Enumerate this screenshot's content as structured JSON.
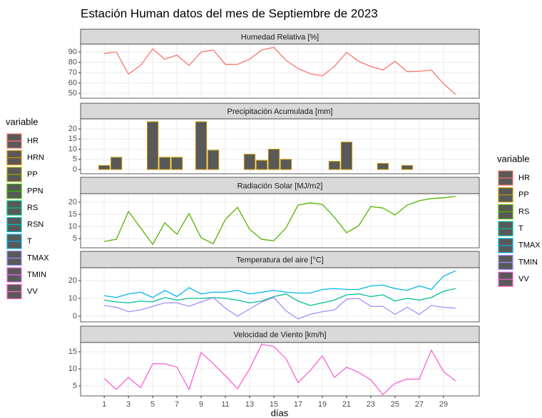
{
  "title": "Estación Human datos del mes de Septiembre de 2023",
  "x_axis": {
    "label": "días",
    "xlim": [
      -0.95,
      31.95
    ],
    "xticks": [
      1,
      3,
      5,
      7,
      9,
      11,
      13,
      15,
      17,
      19,
      21,
      23,
      25,
      27,
      29
    ]
  },
  "legends": [
    {
      "title": "variable",
      "position": "left",
      "items": [
        {
          "name": "HR",
          "color": "#F8766D"
        },
        {
          "name": "HRN",
          "color": "#D89000"
        },
        {
          "name": "PP",
          "color": "#A3A500"
        },
        {
          "name": "PPN",
          "color": "#39B600"
        },
        {
          "name": "RS",
          "color": "#00BF7D"
        },
        {
          "name": "RSN",
          "color": "#00BFC4"
        },
        {
          "name": "T",
          "color": "#00B0F6"
        },
        {
          "name": "TMAX",
          "color": "#9590FF"
        },
        {
          "name": "TMIN",
          "color": "#E76BF3"
        },
        {
          "name": "VV",
          "color": "#FF62BC"
        }
      ]
    },
    {
      "title": "variable",
      "position": "right",
      "items": [
        {
          "name": "HR",
          "color": "#F8766D"
        },
        {
          "name": "PP",
          "color": "#C49A00"
        },
        {
          "name": "RS",
          "color": "#53B400"
        },
        {
          "name": "T",
          "color": "#00C094"
        },
        {
          "name": "TMAX",
          "color": "#00B6EB"
        },
        {
          "name": "TMIN",
          "color": "#A58AFF"
        },
        {
          "name": "VV",
          "color": "#FB61D7"
        }
      ]
    }
  ],
  "chart_data": [
    {
      "type": "line",
      "title": "Humedad Relativa [%]",
      "ylim": [
        45.2,
        97.6
      ],
      "yticks": [
        50,
        60,
        70,
        80,
        90
      ],
      "x": [
        1,
        2,
        3,
        4,
        5,
        6,
        7,
        8,
        9,
        10,
        11,
        12,
        13,
        14,
        15,
        16,
        17,
        18,
        19,
        20,
        21,
        22,
        23,
        24,
        25,
        26,
        27,
        28,
        29,
        30
      ],
      "series": [
        {
          "name": "HR",
          "color": "#F8766D",
          "values": [
            88.6,
            90,
            68.6,
            77,
            93,
            83,
            87,
            77,
            90,
            92,
            78,
            78,
            83,
            92,
            94.5,
            82,
            74,
            69,
            67,
            76,
            89.6,
            81,
            76,
            72.6,
            81,
            71,
            71.3,
            72.5,
            59.3,
            49
          ]
        }
      ]
    },
    {
      "type": "bar",
      "title": "Precipitación Acumulada [mm]",
      "ylim": [
        -2.1,
        24.9
      ],
      "yticks": [
        0,
        5,
        10,
        15,
        20
      ],
      "x": [
        1,
        2,
        3,
        4,
        5,
        6,
        7,
        8,
        9,
        10,
        11,
        12,
        13,
        14,
        15,
        16,
        17,
        18,
        19,
        20,
        21,
        22,
        23,
        24,
        25,
        26,
        27,
        28,
        29,
        30
      ],
      "series": [
        {
          "name": "PP",
          "color": "#C49A00",
          "values": [
            2,
            6,
            0,
            0,
            23.5,
            6,
            6,
            0,
            23.5,
            9.5,
            0,
            0,
            7.5,
            4.5,
            10,
            5,
            0,
            0,
            0,
            4,
            13.5,
            0,
            0,
            3,
            0,
            2,
            0,
            0,
            0,
            0
          ]
        }
      ]
    },
    {
      "type": "line",
      "title": "Radiación Solar [MJ/m2]",
      "ylim": [
        1.2,
        23.5
      ],
      "yticks": [
        5,
        10,
        15,
        20
      ],
      "x": [
        1,
        2,
        3,
        4,
        5,
        6,
        7,
        8,
        9,
        10,
        11,
        12,
        13,
        14,
        15,
        16,
        17,
        18,
        19,
        20,
        21,
        22,
        23,
        24,
        25,
        26,
        27,
        28,
        29,
        30
      ],
      "series": [
        {
          "name": "RS",
          "color": "#53B400",
          "values": [
            3.8,
            4.7,
            16.2,
            9.4,
            2.6,
            11.5,
            6.8,
            15.3,
            5.3,
            2.9,
            12.9,
            17.9,
            8.8,
            4.7,
            4.1,
            9.4,
            18.8,
            19.7,
            19.1,
            13.8,
            7.4,
            10.3,
            18.2,
            17.6,
            14.7,
            18.8,
            20.6,
            21.5,
            21.8,
            22.4
          ]
        }
      ]
    },
    {
      "type": "line",
      "title": "Temperatura del aire [°C]",
      "ylim": [
        -3.2,
        27.2
      ],
      "yticks": [
        0,
        10,
        20
      ],
      "x": [
        1,
        2,
        3,
        4,
        5,
        6,
        7,
        8,
        9,
        10,
        11,
        12,
        13,
        14,
        15,
        16,
        17,
        18,
        19,
        20,
        21,
        22,
        23,
        24,
        25,
        26,
        27,
        28,
        29,
        30
      ],
      "series": [
        {
          "name": "T",
          "color": "#00C094",
          "values": [
            9,
            8,
            7.5,
            8.5,
            8,
            10.5,
            9,
            10,
            10,
            10.5,
            10,
            9,
            7.5,
            8.5,
            11,
            12.5,
            8.5,
            6,
            7.5,
            9,
            12,
            12.5,
            11,
            12,
            8.5,
            10,
            9,
            10.5,
            14,
            15.5
          ]
        },
        {
          "name": "TMAX",
          "color": "#00B6EB",
          "values": [
            11.5,
            10.5,
            12.5,
            13.5,
            10.5,
            14.5,
            11,
            16,
            12.5,
            13.5,
            13.5,
            14.5,
            12.5,
            13.5,
            14.5,
            13.5,
            13,
            13,
            15,
            15.5,
            15,
            15,
            17,
            17.5,
            15.5,
            14.5,
            17,
            15,
            22.5,
            25.5
          ]
        },
        {
          "name": "TMIN",
          "color": "#A58AFF",
          "values": [
            6,
            5,
            2.5,
            3.5,
            5.5,
            7.5,
            7.5,
            5.5,
            8,
            10.5,
            4.5,
            0,
            4,
            8,
            10.5,
            3,
            -1.5,
            1,
            2.5,
            3.5,
            9.5,
            10,
            5.5,
            5.5,
            1,
            5,
            1,
            6,
            5,
            4.5
          ]
        }
      ]
    },
    {
      "type": "line",
      "title": "Velocidad de Viento [km/h]",
      "ylim": [
        2.1,
        17.7
      ],
      "yticks": [
        5,
        10,
        15
      ],
      "x": [
        1,
        2,
        3,
        4,
        5,
        6,
        7,
        8,
        9,
        10,
        11,
        12,
        13,
        14,
        15,
        16,
        17,
        18,
        19,
        20,
        21,
        22,
        23,
        24,
        25,
        26,
        27,
        28,
        29,
        30
      ],
      "series": [
        {
          "name": "VV",
          "color": "#FB61D7",
          "values": [
            7.2,
            4,
            7.5,
            4.5,
            11.5,
            11.5,
            10.5,
            4,
            14.8,
            11.5,
            8,
            4.2,
            10,
            17.2,
            16.5,
            13,
            6,
            9.5,
            13.8,
            7.5,
            10.5,
            9,
            6.8,
            2.5,
            5.8,
            7,
            7,
            15.5,
            9.2,
            6.5
          ]
        }
      ]
    }
  ]
}
